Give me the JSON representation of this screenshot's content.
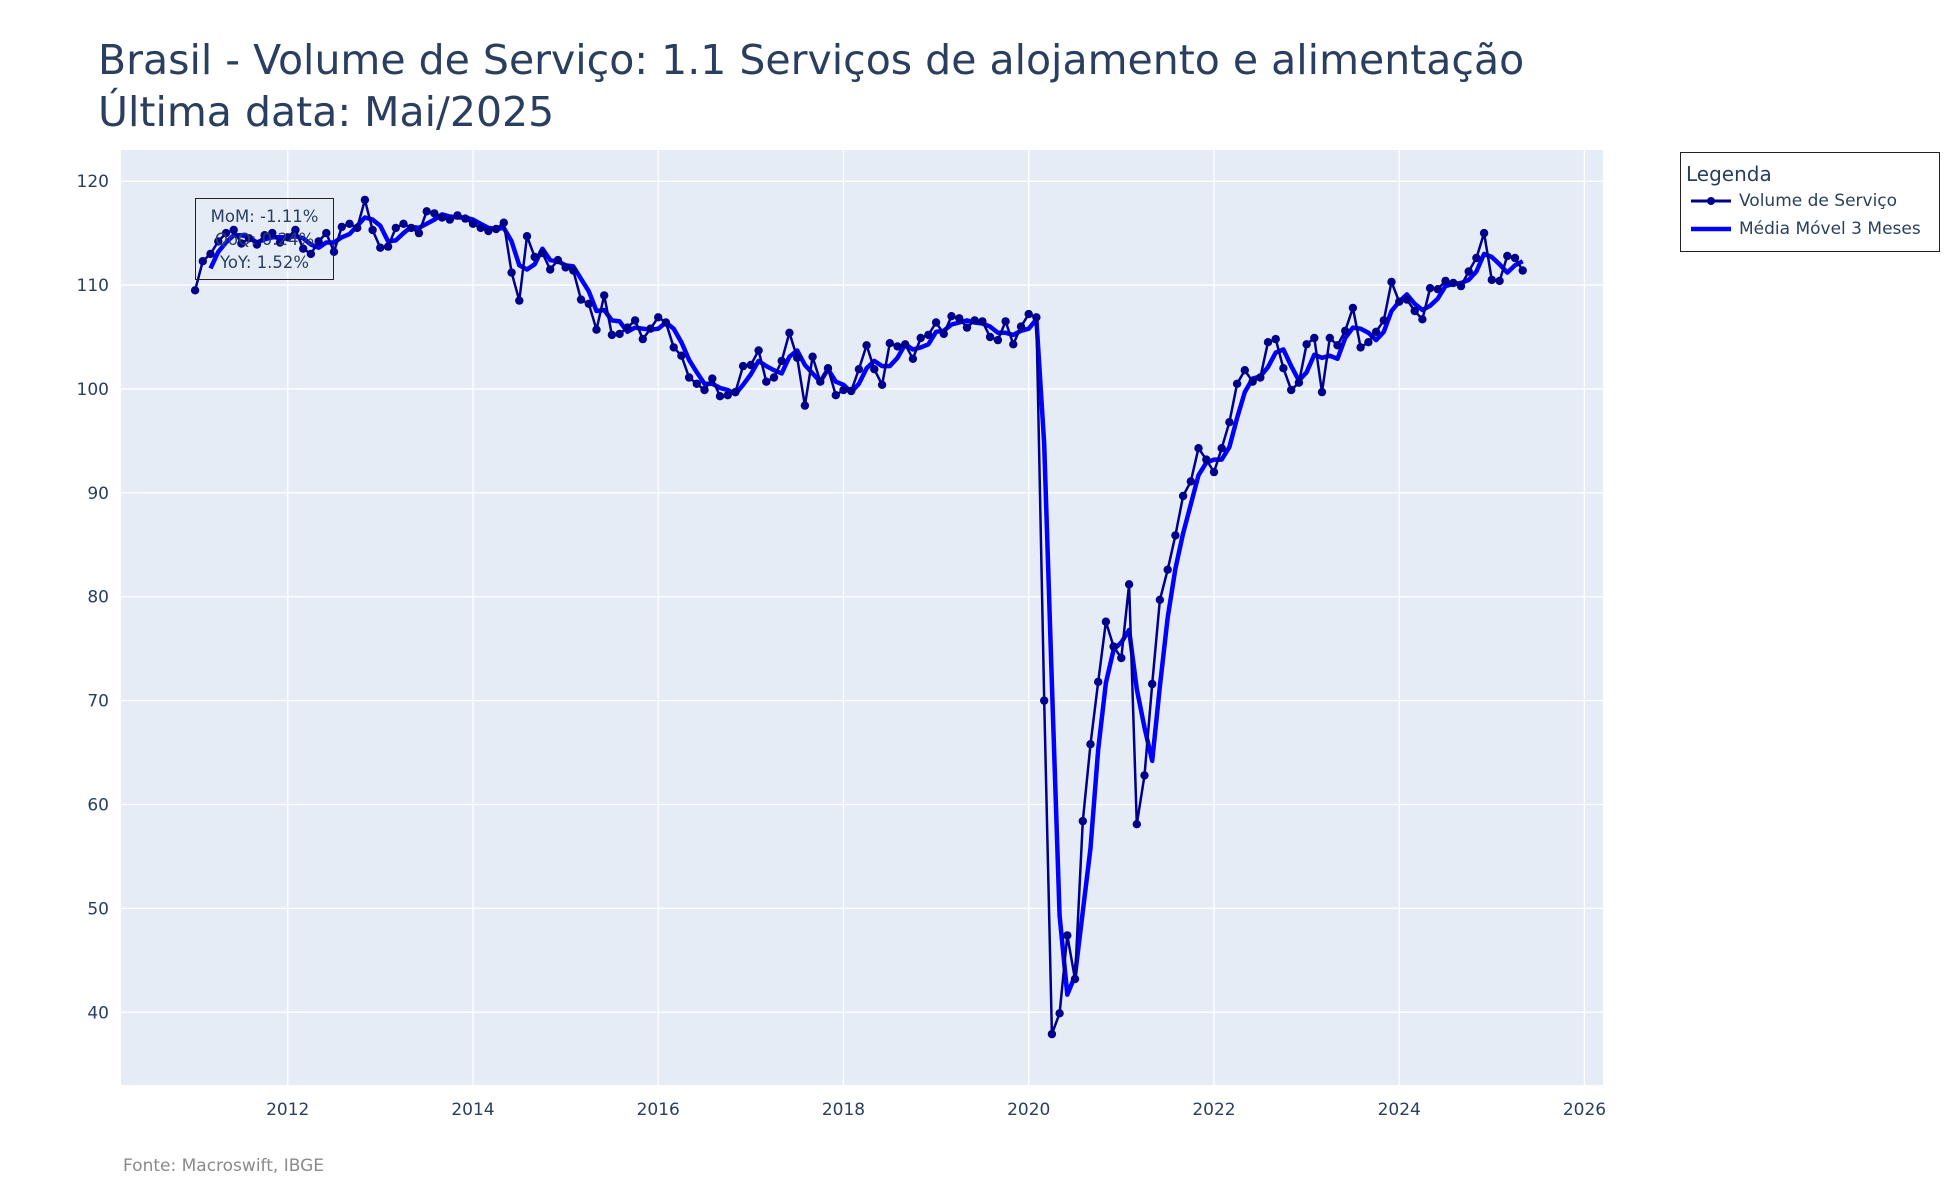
{
  "title": {
    "line1": "Brasil - Volume de Serviço: 1.1 Serviços de alojamento e alimentação",
    "line2": "Última data: Mai/2025"
  },
  "source": "Fonte: Macroswift, IBGE",
  "legend": {
    "title": "Legenda",
    "series_names": [
      "Volume de Serviço",
      "Média Móvel 3 Meses"
    ]
  },
  "stats_box": {
    "mom": "MoM: -1.11%",
    "qoq": "QoQ: 0.24%",
    "yoy": "YoY: 1.52%"
  },
  "colors": {
    "series_main": "#00008b",
    "series_ma": "#0000ff",
    "plot_bg": "#e5ecf6",
    "grid": "#ffffff",
    "text": "#2a3f5f"
  },
  "chart_data": {
    "type": "line",
    "title": "Brasil - Volume de Serviço: 1.1 Serviços de alojamento e alimentação",
    "xlabel": "",
    "ylabel": "",
    "xlim": [
      2010.2,
      2026.2
    ],
    "ylim": [
      33,
      123
    ],
    "xticks": [
      2012,
      2014,
      2016,
      2018,
      2020,
      2022,
      2024,
      2026
    ],
    "yticks": [
      40,
      50,
      60,
      70,
      80,
      90,
      100,
      110,
      120
    ],
    "grid": true,
    "legend_position": "top-right outside",
    "x_start": "2011-01",
    "frequency": "monthly",
    "series": [
      {
        "name": "Volume de Serviço",
        "marker": "circle",
        "values": [
          109.5,
          112.3,
          113.0,
          114.2,
          115.0,
          115.3,
          114.0,
          114.5,
          113.9,
          114.8,
          115.0,
          114.1,
          114.6,
          115.3,
          113.5,
          113.0,
          114.2,
          115.0,
          113.2,
          115.6,
          115.9,
          115.5,
          118.2,
          115.3,
          113.6,
          113.7,
          115.5,
          115.9,
          115.5,
          115.0,
          117.1,
          116.9,
          116.5,
          116.3,
          116.7,
          116.4,
          115.9,
          115.5,
          115.2,
          115.4,
          116.0,
          111.2,
          108.5,
          114.7,
          112.7,
          113.1,
          111.5,
          112.4,
          111.7,
          111.4,
          108.6,
          108.2,
          105.7,
          109.0,
          105.2,
          105.3,
          105.9,
          106.6,
          104.8,
          105.8,
          106.9,
          106.4,
          104.0,
          103.2,
          101.1,
          100.5,
          99.9,
          101.0,
          99.3,
          99.4,
          99.7,
          102.2,
          102.3,
          103.7,
          100.7,
          101.1,
          102.7,
          105.4,
          103.0,
          98.4,
          103.1,
          100.7,
          102.0,
          99.4,
          99.9,
          99.8,
          101.9,
          104.2,
          101.9,
          100.4,
          104.4,
          104.1,
          104.3,
          102.9,
          104.9,
          105.2,
          106.4,
          105.3,
          107.0,
          106.8,
          105.9,
          106.6,
          106.5,
          105.0,
          104.7,
          106.5,
          104.3,
          106.0,
          107.2,
          106.9,
          70.0,
          37.9,
          39.9,
          47.4,
          43.2,
          58.4,
          65.8,
          71.8,
          77.6,
          75.2,
          74.1,
          81.2,
          58.1,
          62.8,
          71.6,
          79.7,
          82.6,
          85.9,
          89.7,
          91.1,
          94.3,
          93.2,
          92.0,
          94.3,
          96.8,
          100.5,
          101.8,
          100.7,
          101.1,
          104.5,
          104.8,
          102.0,
          99.9,
          100.6,
          104.3,
          104.9,
          99.7,
          104.9,
          104.2,
          105.6,
          107.8,
          104.0,
          104.5,
          105.5,
          106.6,
          110.3,
          108.4,
          108.6,
          107.5,
          106.7,
          109.7,
          109.6,
          110.4,
          110.2,
          109.9,
          111.3,
          112.6,
          115.0,
          110.5,
          110.4,
          112.8,
          112.6,
          111.4
        ]
      },
      {
        "name": "Média Móvel 3 Meses",
        "values": [
          null,
          null,
          111.6,
          113.2,
          114.1,
          114.8,
          114.8,
          114.6,
          114.1,
          114.4,
          114.6,
          114.6,
          114.6,
          114.7,
          114.5,
          113.9,
          113.6,
          114.1,
          114.1,
          114.6,
          114.9,
          115.7,
          116.5,
          116.3,
          115.7,
          114.2,
          114.3,
          115.0,
          115.6,
          115.5,
          115.9,
          116.3,
          116.8,
          116.6,
          116.5,
          116.5,
          116.3,
          115.9,
          115.5,
          115.4,
          115.5,
          114.2,
          111.9,
          111.5,
          112.0,
          113.5,
          112.4,
          112.3,
          111.9,
          111.8,
          110.6,
          109.4,
          107.5,
          107.6,
          106.6,
          106.5,
          105.5,
          105.9,
          105.8,
          105.7,
          105.8,
          106.4,
          105.8,
          104.5,
          102.8,
          101.6,
          100.5,
          100.5,
          100.1,
          99.9,
          99.5,
          100.4,
          101.4,
          102.7,
          102.2,
          101.8,
          101.5,
          103.1,
          103.7,
          102.3,
          101.5,
          100.7,
          101.9,
          100.7,
          100.4,
          99.7,
          100.5,
          102.0,
          102.7,
          102.2,
          102.2,
          103.0,
          104.3,
          103.8,
          104.0,
          104.3,
          105.5,
          105.6,
          106.2,
          106.4,
          106.6,
          106.4,
          106.3,
          106.0,
          105.4,
          105.4,
          105.2,
          105.6,
          105.8,
          106.7,
          94.7,
          71.6,
          49.3,
          41.7,
          43.5,
          49.7,
          55.8,
          65.3,
          71.7,
          74.9,
          75.6,
          76.8,
          71.1,
          67.4,
          64.2,
          71.4,
          78.0,
          82.7,
          86.1,
          88.9,
          91.7,
          92.9,
          93.2,
          93.2,
          94.4,
          97.2,
          99.7,
          101.0,
          101.2,
          102.1,
          103.5,
          103.8,
          102.2,
          100.8,
          101.6,
          103.3,
          103.0,
          103.2,
          102.9,
          104.9,
          105.9,
          105.8,
          105.4,
          104.7,
          105.5,
          107.5,
          108.4,
          109.1,
          108.2,
          107.6,
          108.0,
          108.7,
          109.9,
          110.1,
          110.2,
          110.5,
          111.3,
          113.0,
          112.7,
          112.0,
          111.2,
          111.9,
          112.3
        ]
      }
    ]
  }
}
